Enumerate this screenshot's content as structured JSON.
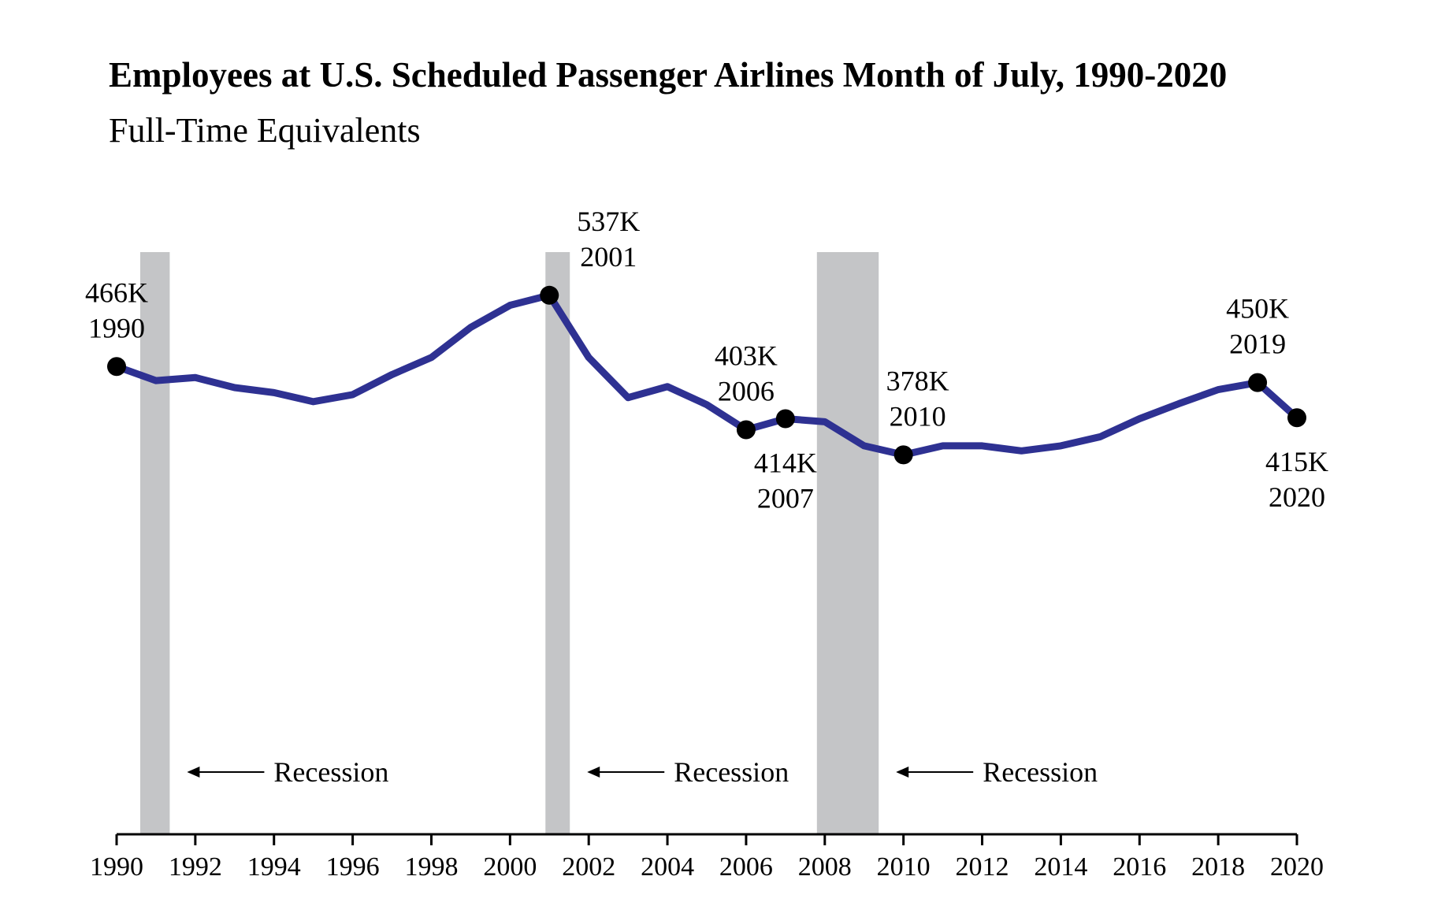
{
  "chart_data": {
    "type": "line",
    "title": "Employees at U.S. Scheduled Passenger Airlines Month of July, 1990-2020",
    "subtitle": "Full-Time Equivalents",
    "x": [
      1990,
      1991,
      1992,
      1993,
      1994,
      1995,
      1996,
      1997,
      1998,
      1999,
      2000,
      2001,
      2002,
      2003,
      2004,
      2005,
      2006,
      2007,
      2008,
      2009,
      2010,
      2011,
      2012,
      2013,
      2014,
      2015,
      2016,
      2017,
      2018,
      2019,
      2020
    ],
    "series": [
      {
        "name": "Employees",
        "color": "#2e3192",
        "values": [
          466,
          452,
          455,
          445,
          440,
          431,
          438,
          458,
          475,
          505,
          527,
          537,
          475,
          435,
          446,
          428,
          403,
          414,
          411,
          387,
          378,
          387,
          387,
          382,
          387,
          396,
          414,
          429,
          443,
          450,
          415
        ],
        "value_labels": [
          "466K",
          null,
          null,
          null,
          null,
          null,
          null,
          null,
          null,
          null,
          null,
          "537K",
          null,
          null,
          null,
          null,
          "403K",
          "414K",
          null,
          null,
          "378K",
          null,
          null,
          null,
          null,
          null,
          null,
          null,
          null,
          "450K",
          "415K"
        ],
        "year_labels": [
          "1990",
          null,
          null,
          null,
          null,
          null,
          null,
          null,
          null,
          null,
          null,
          "2001",
          null,
          null,
          null,
          null,
          "2006",
          "2007",
          null,
          null,
          "2010",
          null,
          null,
          null,
          null,
          null,
          null,
          null,
          null,
          "2019",
          "2020"
        ]
      }
    ],
    "recessions": [
      {
        "start": 1990.6,
        "end": 1991.35,
        "label": "Recession"
      },
      {
        "start": 2000.9,
        "end": 2001.52,
        "label": "Recession"
      },
      {
        "start": 2007.8,
        "end": 2009.37,
        "label": "Recession"
      }
    ],
    "recession_color": "#c4c5c7",
    "xlim": [
      1990,
      2020
    ],
    "xticks": [
      1990,
      1992,
      1994,
      1996,
      1998,
      2000,
      2002,
      2004,
      2006,
      2008,
      2010,
      2012,
      2014,
      2016,
      2018,
      2020
    ],
    "ylim": [
      0,
      580
    ]
  }
}
